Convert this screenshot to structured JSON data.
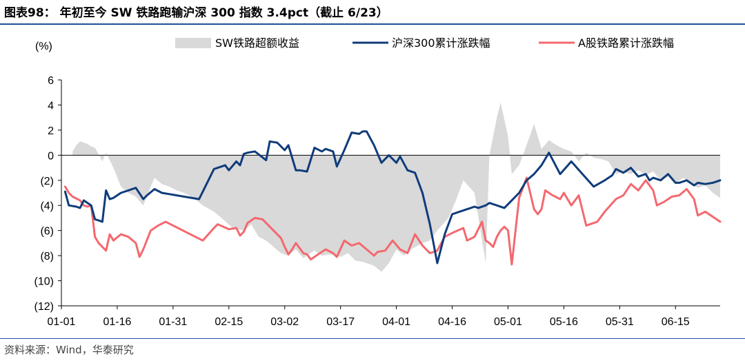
{
  "header": {
    "title": "图表98： 年初至今 SW 铁路跑输沪深 300 指数 3.4pct（截止 6/23）"
  },
  "footer": {
    "source": "资料来源：Wind，华泰研究"
  },
  "chart_data": {
    "type": "line",
    "ylabel": "(%)",
    "ylim": [
      -12,
      6
    ],
    "yticks": [
      6,
      4,
      2,
      0,
      -2,
      -4,
      -6,
      -8,
      -10,
      -12
    ],
    "ytick_labels": [
      "6",
      "4",
      "2",
      "0",
      "(2)",
      "(4)",
      "(6)",
      "(8)",
      "(10)",
      "(12)"
    ],
    "xtick_labels": [
      "01-01",
      "01-16",
      "01-31",
      "02-15",
      "03-02",
      "03-17",
      "04-01",
      "04-16",
      "05-01",
      "05-16",
      "05-31",
      "06-15"
    ],
    "xlim_days": [
      0,
      177
    ],
    "legend_position": "top",
    "colors": {
      "excess": "#d9d9d9",
      "hs300": "#0f3c7a",
      "railway": "#f4686e"
    },
    "series": [
      {
        "name": "SW铁路超额收益",
        "render": "area",
        "days": [
          3,
          4,
          5,
          7,
          8,
          9,
          11,
          12,
          14,
          16,
          18,
          20,
          22,
          24,
          25,
          27,
          29,
          31,
          33,
          36,
          38,
          41,
          43,
          46,
          49,
          51,
          53,
          55,
          57,
          59,
          61,
          63,
          65,
          68,
          70,
          72,
          75,
          77,
          79,
          81,
          84,
          86,
          88,
          90,
          92,
          94,
          97,
          99,
          101,
          104,
          106,
          108,
          111,
          114,
          115,
          117,
          118,
          120,
          121,
          123,
          125,
          127,
          129,
          131,
          133,
          135,
          137,
          139,
          141,
          143,
          145,
          147,
          149,
          151,
          153,
          155,
          157,
          159,
          161,
          163,
          165,
          167,
          169,
          171,
          173,
          175,
          177
        ],
        "values": [
          0.3,
          0.8,
          1.1,
          0.9,
          0.7,
          0.6,
          -0.5,
          0.2,
          -1.0,
          -2.5,
          -3.0,
          -3.3,
          -4.0,
          -2.5,
          -1.8,
          -2.3,
          -2.5,
          -2.8,
          -3.0,
          -3.5,
          -4.0,
          -4.5,
          -5.0,
          -5.8,
          -6.0,
          -5.5,
          -6.5,
          -6.8,
          -7.3,
          -7.8,
          -8.0,
          -7.5,
          -8.2,
          -7.6,
          -8.0,
          -7.9,
          -8.1,
          -7.8,
          -8.4,
          -8.5,
          -8.8,
          -9.3,
          -8.6,
          -7.5,
          -8.0,
          -7.5,
          -7.0,
          -6.8,
          -6.0,
          -5.0,
          -3.6,
          -2.0,
          -3.0,
          -8.6,
          0.0,
          3.0,
          4.2,
          1.5,
          -1.5,
          -0.8,
          0.8,
          2.5,
          0.5,
          1.2,
          0.8,
          0.5,
          0.3,
          -0.5,
          0.2,
          -0.2,
          -0.3,
          -0.5,
          -1.5,
          -1.3,
          -1.5,
          -1.2,
          -1.6,
          -1.3,
          -2.0,
          -1.7,
          -2.3,
          -1.8,
          -2.2,
          -2.6,
          -2.4,
          -3.0,
          -3.4
        ]
      },
      {
        "name": "沪深300累计涨跌幅",
        "render": "line",
        "days": [
          1,
          2,
          4,
          5,
          6,
          7,
          8,
          9,
          10,
          11,
          12,
          13,
          14,
          16,
          18,
          20,
          22,
          23,
          25,
          27,
          29,
          33,
          37,
          41,
          44,
          45,
          47,
          48,
          49,
          50,
          52,
          55,
          56,
          58,
          60,
          61,
          63,
          64,
          66,
          68,
          70,
          71,
          73,
          74,
          76,
          78,
          80,
          81,
          82,
          84,
          86,
          88,
          90,
          91,
          93,
          95,
          97,
          99,
          101,
          103,
          105,
          107,
          109,
          110,
          111,
          112,
          114,
          115,
          116,
          117,
          119,
          121,
          123,
          125,
          127,
          129,
          131,
          134,
          137,
          140,
          143,
          146,
          148,
          149,
          151,
          153,
          155,
          157,
          158,
          159,
          161,
          163,
          165,
          166,
          168,
          170,
          171,
          173,
          175,
          177
        ],
        "values": [
          -2.9,
          -4.0,
          -4.1,
          -4.2,
          -3.6,
          -3.8,
          -4.0,
          -5.1,
          -5.2,
          -5.3,
          -2.8,
          -3.5,
          -3.4,
          -3.0,
          -2.8,
          -2.6,
          -3.5,
          -3.2,
          -2.7,
          -3.0,
          -3.1,
          -3.3,
          -3.5,
          -1.1,
          -0.8,
          -1.2,
          -0.5,
          -0.8,
          0.1,
          0.2,
          0.3,
          -0.4,
          1.1,
          1.0,
          0.4,
          0.8,
          -1.2,
          -1.2,
          -1.3,
          0.6,
          0.3,
          0.5,
          0.3,
          -0.9,
          0.4,
          1.8,
          1.7,
          1.9,
          1.9,
          0.8,
          -0.6,
          0.0,
          -0.6,
          -0.1,
          -1.2,
          -1.4,
          -3.0,
          -5.5,
          -8.6,
          -6.3,
          -4.7,
          -4.5,
          -4.3,
          -4.2,
          -4.1,
          -4.2,
          -4.0,
          -3.8,
          -3.9,
          -4.0,
          -4.2,
          -3.6,
          -3.0,
          -2.0,
          -1.5,
          -0.8,
          0.2,
          -1.5,
          -0.5,
          -1.5,
          -2.5,
          -2.0,
          -1.6,
          -1.1,
          -1.4,
          -1.0,
          -1.7,
          -1.5,
          -2.0,
          -1.8,
          -2.0,
          -1.5,
          -2.2,
          -2.2,
          -2.0,
          -2.4,
          -2.2,
          -2.3,
          -2.2,
          -2.0
        ]
      },
      {
        "name": "A股铁路累计涨跌幅",
        "render": "line",
        "days": [
          1,
          2,
          3,
          5,
          6,
          7,
          8,
          9,
          10,
          12,
          13,
          14,
          16,
          18,
          20,
          21,
          22,
          24,
          26,
          28,
          30,
          34,
          38,
          41,
          42,
          45,
          47,
          48,
          49,
          50,
          52,
          54,
          55,
          57,
          59,
          60,
          61,
          62,
          63,
          65,
          66,
          67,
          69,
          71,
          73,
          74,
          76,
          78,
          80,
          82,
          84,
          85,
          87,
          89,
          91,
          93,
          95,
          97,
          99,
          101,
          103,
          105,
          108,
          109,
          111,
          113,
          114,
          115,
          116,
          117,
          118,
          119,
          120,
          121,
          123,
          125,
          127,
          128,
          129,
          130,
          132,
          134,
          135,
          137,
          139,
          141,
          144,
          146,
          149,
          151,
          153,
          155,
          157,
          159,
          160,
          162,
          164,
          166,
          168,
          170,
          171,
          173,
          175,
          177
        ],
        "values": [
          -2.5,
          -3.0,
          -3.3,
          -3.6,
          -4.0,
          -4.1,
          -4.0,
          -6.5,
          -7.0,
          -7.6,
          -6.3,
          -6.8,
          -6.3,
          -6.5,
          -7.0,
          -8.1,
          -7.5,
          -6.0,
          -5.6,
          -5.3,
          -5.6,
          -6.2,
          -6.8,
          -5.8,
          -5.5,
          -5.9,
          -5.8,
          -6.4,
          -6.1,
          -5.4,
          -5.0,
          -5.1,
          -5.4,
          -6.0,
          -6.6,
          -7.3,
          -7.9,
          -7.5,
          -7.0,
          -7.8,
          -7.9,
          -8.3,
          -7.9,
          -7.5,
          -7.8,
          -8.1,
          -6.8,
          -7.2,
          -7.0,
          -7.5,
          -8.0,
          -7.7,
          -7.6,
          -6.8,
          -7.5,
          -7.8,
          -6.3,
          -7.2,
          -7.8,
          -7.6,
          -6.5,
          -6.2,
          -5.8,
          -6.8,
          -6.5,
          -5.3,
          -6.8,
          -7.0,
          -7.3,
          -6.5,
          -6.0,
          -5.7,
          -6.0,
          -8.7,
          -3.4,
          -1.8,
          -4.3,
          -4.7,
          -4.3,
          -2.8,
          -3.2,
          -3.5,
          -3.0,
          -4.0,
          -3.2,
          -5.6,
          -5.3,
          -4.5,
          -3.5,
          -3.2,
          -2.3,
          -2.8,
          -2.0,
          -2.8,
          -4.0,
          -3.7,
          -3.3,
          -3.2,
          -2.7,
          -3.5,
          -4.8,
          -4.5,
          -4.9,
          -5.3
        ]
      }
    ]
  }
}
